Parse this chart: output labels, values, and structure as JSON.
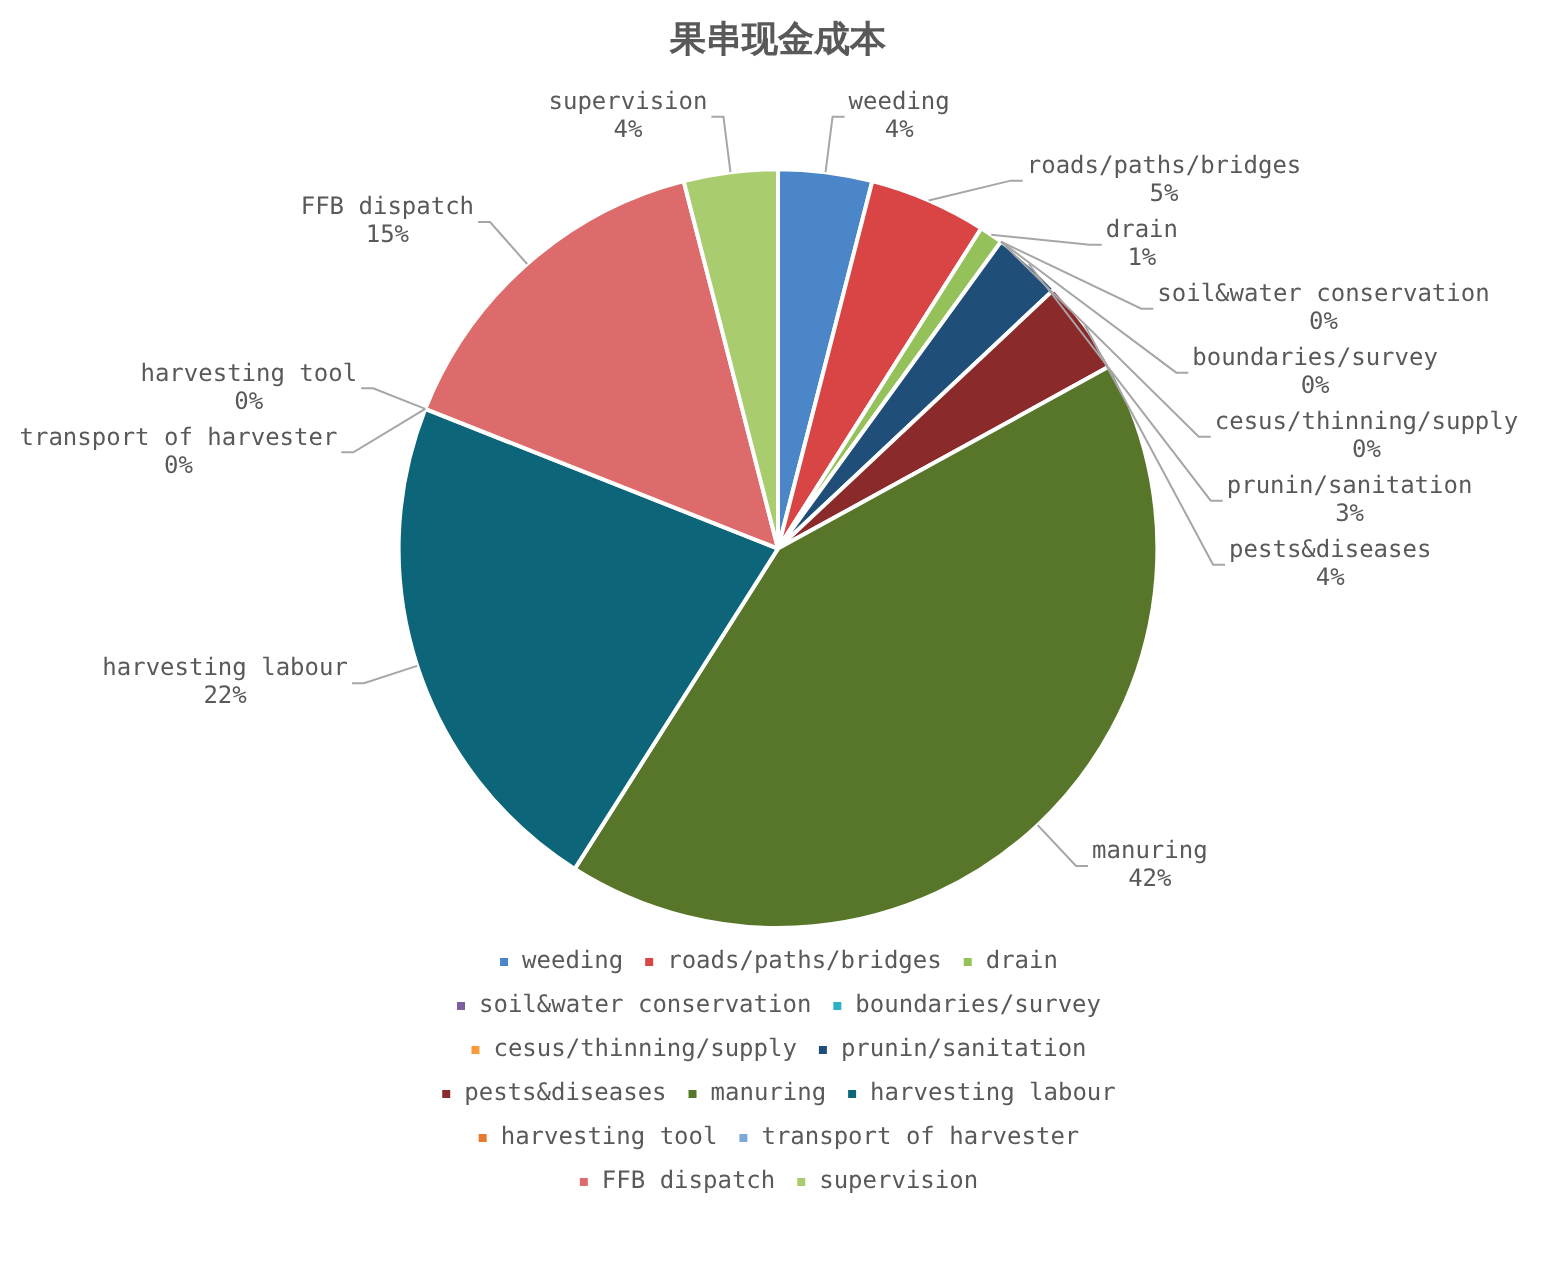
{
  "chart_data": {
    "type": "pie",
    "title": "果串现金成本",
    "categories": [
      "weeding",
      "roads/paths/bridges",
      "drain",
      "soil&water conservation",
      "boundaries/survey",
      "cesus/thinning/supply",
      "prunin/sanitation",
      "pests&diseases",
      "manuring",
      "harvesting labour",
      "harvesting tool",
      "transport of harvester",
      "FFB dispatch",
      "supervision"
    ],
    "values": [
      4,
      5,
      1,
      0,
      0,
      0,
      3,
      4,
      42,
      22,
      0,
      0,
      15,
      4
    ],
    "value_labels": [
      "4%",
      "5%",
      "1%",
      "0%",
      "0%",
      "0%",
      "3%",
      "4%",
      "42%",
      "22%",
      "0%",
      "0%",
      "15%",
      "4%"
    ],
    "colors": [
      "#4a86c8",
      "#d94545",
      "#94c15a",
      "#7e5ea3",
      "#2ab0c8",
      "#f59b3c",
      "#1f4e79",
      "#8b2a2a",
      "#58762a",
      "#0d6579",
      "#e97a2b",
      "#7ba8d8",
      "#dd6b6b",
      "#a9cc6e"
    ],
    "legend": "bottom"
  }
}
